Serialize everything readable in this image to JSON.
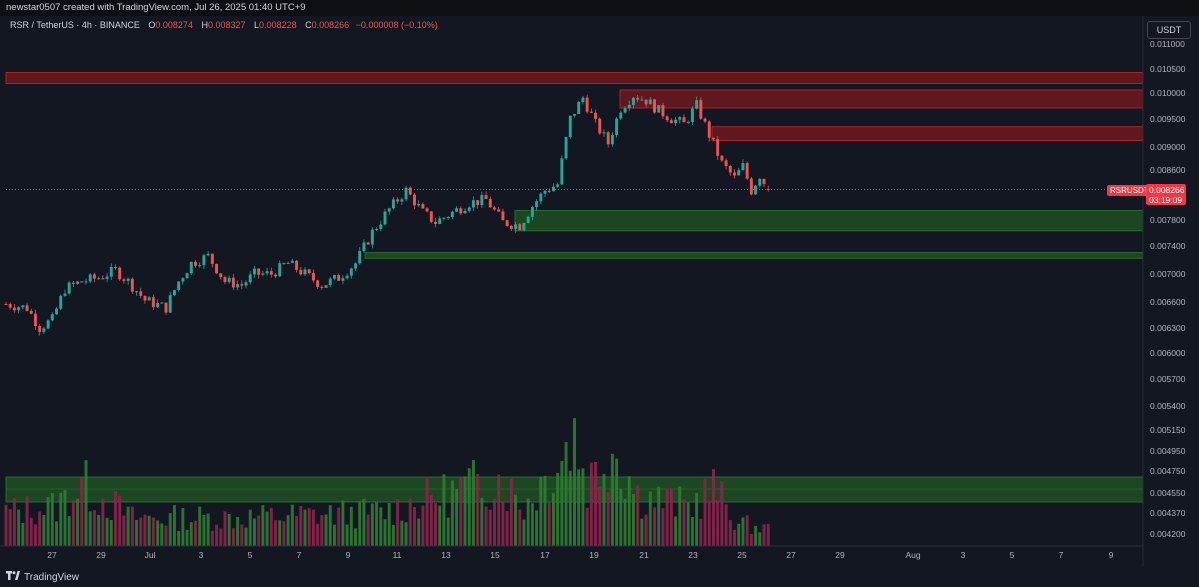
{
  "header": {
    "attribution": "newstar0507 created with TradingView.com, Jul 26, 2025 01:40 UTC+9"
  },
  "legend": {
    "symbol": "RSR / TetherUS · 4h · BINANCE",
    "open_label": "O",
    "open": "0.008274",
    "high_label": "H",
    "high": "0.008327",
    "low_label": "L",
    "low": "0.008228",
    "close_label": "C",
    "close": "0.008266",
    "change": "−0.000008 (−0.10%)"
  },
  "currency": "USDT",
  "price_tag": {
    "symbol": "RSRUSDT",
    "price": "0.008266",
    "countdown": "03:19:09"
  },
  "brand": {
    "name": "TradingView",
    "logo_icon": "tradingview-logo-icon"
  },
  "colors": {
    "up": "#26a69a",
    "down": "#ef5350",
    "background": "#131722",
    "resistance": "#8b1e24",
    "support": "#1b5e20"
  },
  "chart_data": {
    "type": "candlestick",
    "interval": "4h",
    "y_axis_scale": "log",
    "y_ticks": [
      "0.011000",
      "0.010500",
      "0.010000",
      "0.009500",
      "0.009000",
      "0.008600",
      "0.008266",
      "0.007800",
      "0.007400",
      "0.007000",
      "0.006600",
      "0.006300",
      "0.006000",
      "0.005700",
      "0.005400",
      "0.005150",
      "0.004950",
      "0.004750",
      "0.004550",
      "0.004370",
      "0.004200"
    ],
    "x_ticks": [
      "27",
      "29",
      "Jul",
      "3",
      "5",
      "7",
      "9",
      "11",
      "13",
      "15",
      "17",
      "19",
      "21",
      "23",
      "25",
      "27",
      "29",
      "Aug",
      "3",
      "5",
      "7",
      "9"
    ],
    "x_range": [
      "2025-06-26",
      "2025-08-10"
    ],
    "zones": [
      {
        "kind": "resistance",
        "from": 0.01018,
        "to": 0.0104
      },
      {
        "kind": "resistance",
        "from": 0.0097,
        "to": 0.01005
      },
      {
        "kind": "resistance",
        "from": 0.0091,
        "to": 0.00935
      },
      {
        "kind": "support",
        "from": 0.00762,
        "to": 0.00793
      },
      {
        "kind": "support",
        "from": 0.00722,
        "to": 0.0073
      }
    ],
    "volume_zone": {
      "kind": "support"
    },
    "last_price": 0.008266,
    "price_path": [
      [
        "2025-06-26T00:00",
        0.0066
      ],
      [
        "2025-06-26T20:00",
        0.00655
      ],
      [
        "2025-06-27T08:00",
        0.0063
      ],
      [
        "2025-06-27T20:00",
        0.0064
      ],
      [
        "2025-06-28T08:00",
        0.0068
      ],
      [
        "2025-06-29T00:00",
        0.0069
      ],
      [
        "2025-06-29T16:00",
        0.00695
      ],
      [
        "2025-06-30T08:00",
        0.00705
      ],
      [
        "2025-06-30T20:00",
        0.0069
      ],
      [
        "2025-07-01T12:00",
        0.00665
      ],
      [
        "2025-07-02T08:00",
        0.00655
      ],
      [
        "2025-07-02T20:00",
        0.0069
      ],
      [
        "2025-07-03T08:00",
        0.00715
      ],
      [
        "2025-07-04T00:00",
        0.00725
      ],
      [
        "2025-07-04T16:00",
        0.0069
      ],
      [
        "2025-07-05T08:00",
        0.00685
      ],
      [
        "2025-07-05T20:00",
        0.007
      ],
      [
        "2025-07-06T12:00",
        0.007
      ],
      [
        "2025-07-07T04:00",
        0.00715
      ],
      [
        "2025-07-07T20:00",
        0.007
      ],
      [
        "2025-07-08T12:00",
        0.00685
      ],
      [
        "2025-07-09T04:00",
        0.00695
      ],
      [
        "2025-07-09T20:00",
        0.00715
      ],
      [
        "2025-07-10T12:00",
        0.0076
      ],
      [
        "2025-07-11T04:00",
        0.00795
      ],
      [
        "2025-07-11T20:00",
        0.00825
      ],
      [
        "2025-07-12T12:00",
        0.0079
      ],
      [
        "2025-07-13T00:00",
        0.00775
      ],
      [
        "2025-07-13T16:00",
        0.0079
      ],
      [
        "2025-07-14T08:00",
        0.00805
      ],
      [
        "2025-07-15T00:00",
        0.0081
      ],
      [
        "2025-07-15T16:00",
        0.00775
      ],
      [
        "2025-07-16T08:00",
        0.0077
      ],
      [
        "2025-07-16T20:00",
        0.008
      ],
      [
        "2025-07-17T08:00",
        0.00825
      ],
      [
        "2025-07-17T20:00",
        0.00835
      ],
      [
        "2025-07-18T08:00",
        0.0095
      ],
      [
        "2025-07-18T20:00",
        0.0099
      ],
      [
        "2025-07-19T08:00",
        0.0094
      ],
      [
        "2025-07-19T20:00",
        0.00905
      ],
      [
        "2025-07-20T08:00",
        0.0097
      ],
      [
        "2025-07-20T20:00",
        0.00995
      ],
      [
        "2025-07-21T08:00",
        0.00985
      ],
      [
        "2025-07-21T20:00",
        0.00965
      ],
      [
        "2025-07-22T08:00",
        0.0095
      ],
      [
        "2025-07-22T20:00",
        0.0094
      ],
      [
        "2025-07-23T08:00",
        0.00975
      ],
      [
        "2025-07-23T20:00",
        0.0092
      ],
      [
        "2025-07-24T08:00",
        0.0087
      ],
      [
        "2025-07-24T20:00",
        0.00845
      ],
      [
        "2025-07-25T04:00",
        0.00865
      ],
      [
        "2025-07-25T12:00",
        0.00825
      ],
      [
        "2025-07-25T20:00",
        0.0085
      ],
      [
        "2025-07-26T04:00",
        0.008266
      ]
    ],
    "volume_profile": [
      [
        "2025-06-26T00:00",
        0.3
      ],
      [
        "2025-06-28T00:00",
        0.35
      ],
      [
        "2025-06-29T00:00",
        0.55
      ],
      [
        "2025-07-01T00:00",
        0.25
      ],
      [
        "2025-07-05T00:00",
        0.25
      ],
      [
        "2025-07-11T00:00",
        0.3
      ],
      [
        "2025-07-15T12:00",
        0.6
      ],
      [
        "2025-07-16T12:00",
        0.35
      ],
      [
        "2025-07-18T00:00",
        0.8
      ],
      [
        "2025-07-18T12:00",
        1.0
      ],
      [
        "2025-07-19T00:00",
        0.55
      ],
      [
        "2025-07-20T00:00",
        0.9
      ],
      [
        "2025-07-21T00:00",
        0.45
      ],
      [
        "2025-07-23T00:00",
        0.35
      ],
      [
        "2025-07-24T00:00",
        0.5
      ],
      [
        "2025-07-25T00:00",
        0.2
      ],
      [
        "2025-07-26T04:00",
        0.15
      ]
    ]
  }
}
